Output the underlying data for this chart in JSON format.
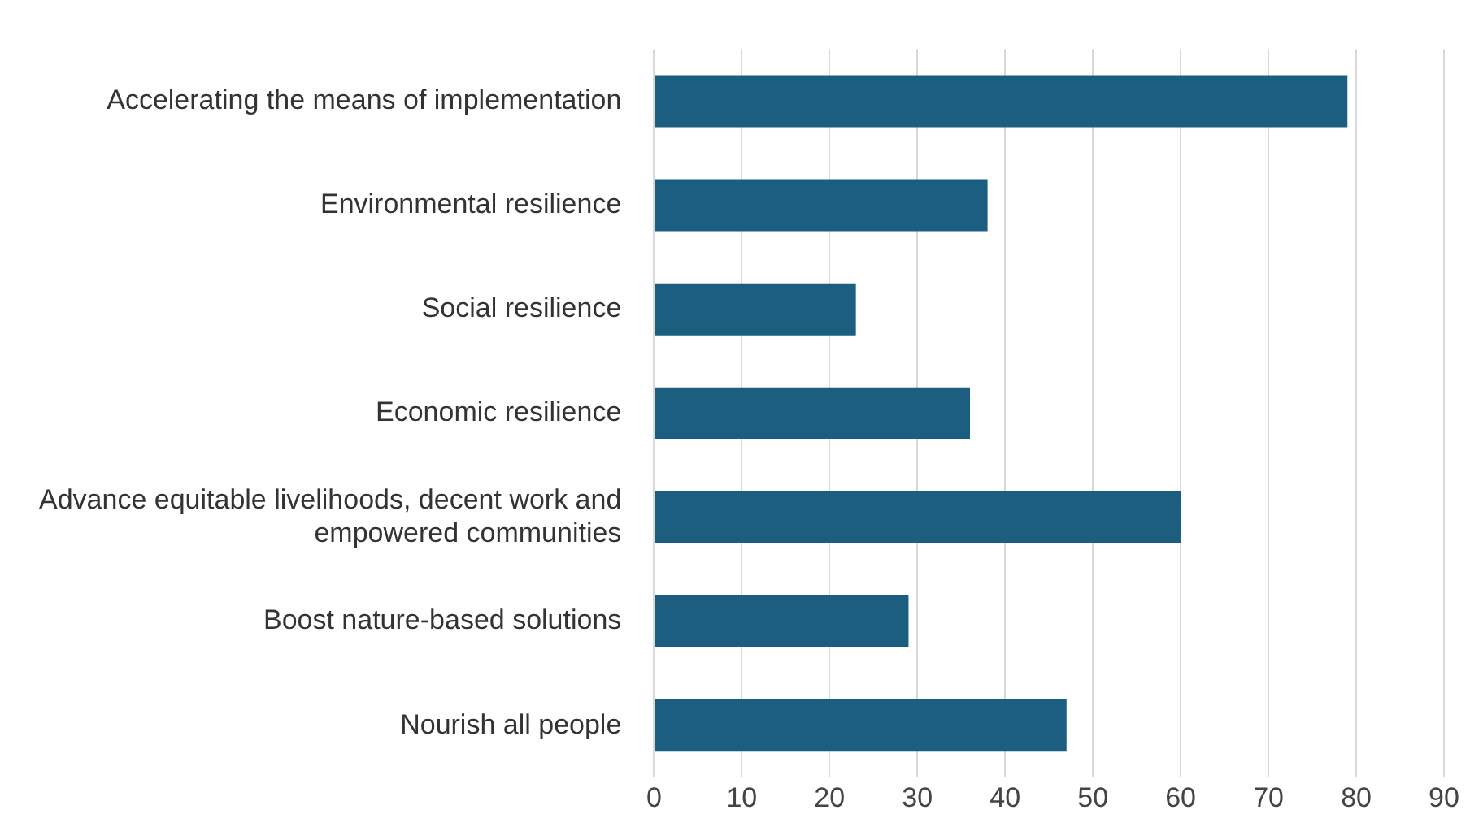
{
  "chart_data": {
    "type": "bar",
    "orientation": "horizontal",
    "categories": [
      "Accelerating the means of implementation",
      "Environmental resilience",
      "Social resilience",
      "Economic resilience",
      "Advance equitable livelihoods, decent work and empowered communities",
      "Boost nature-based solutions",
      "Nourish all people"
    ],
    "values": [
      79,
      38,
      23,
      36,
      60,
      29,
      47
    ],
    "color": "#1b5e7f",
    "xlim": [
      0,
      90
    ],
    "xticks": [
      0,
      10,
      20,
      30,
      40,
      50,
      60,
      70,
      80,
      90
    ],
    "grid": "x",
    "legend": false
  }
}
